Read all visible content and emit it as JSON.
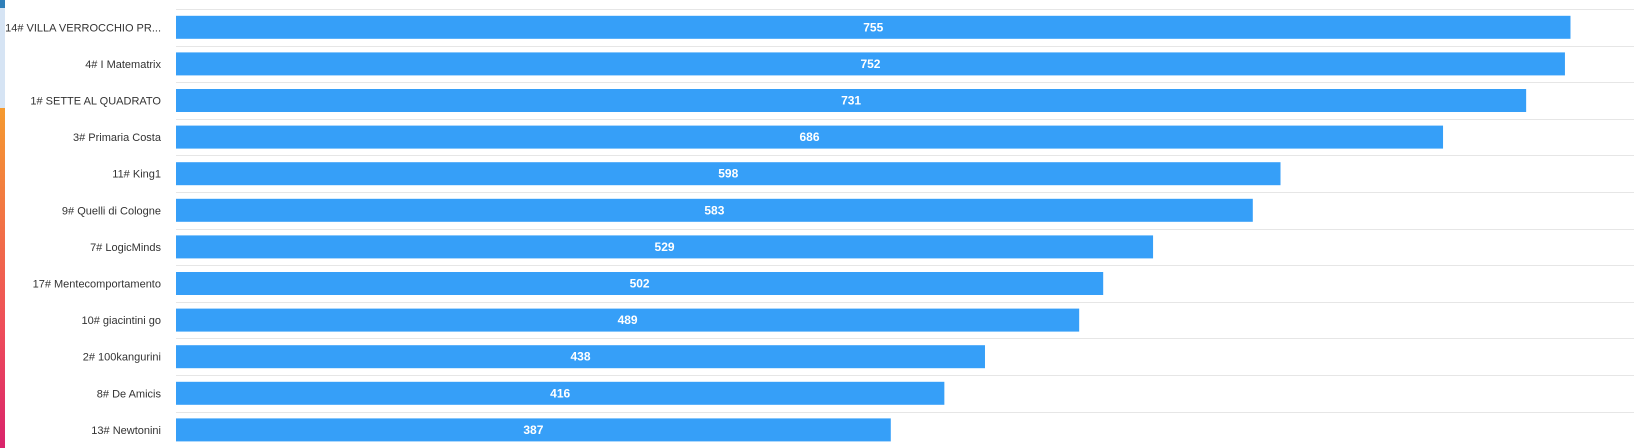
{
  "chart_data": {
    "type": "bar",
    "orientation": "horizontal",
    "categories": [
      "14# VILLA VERROCCHIO PR...",
      "4# I Matematrix",
      "1# SETTE AL QUADRATO",
      "3# Primaria Costa",
      "11# King1",
      "9# Quelli di Cologne",
      "7# LogicMinds",
      "17# Mentecomportamento",
      "10# giacintini go",
      "2# 100kangurini",
      "8# De Amicis",
      "13# Newtonini"
    ],
    "values": [
      755,
      752,
      731,
      686,
      598,
      583,
      529,
      502,
      489,
      438,
      416,
      387
    ],
    "bar_color": "#369ff8",
    "value_label_color": "#ffffff",
    "grid": true,
    "xlim": [
      0,
      780
    ]
  },
  "accent_strip": {
    "colors": [
      "#2f7fb9",
      "#d6e4f4",
      "#f59a2f",
      "#ee4d5a",
      "#d9236b"
    ]
  }
}
